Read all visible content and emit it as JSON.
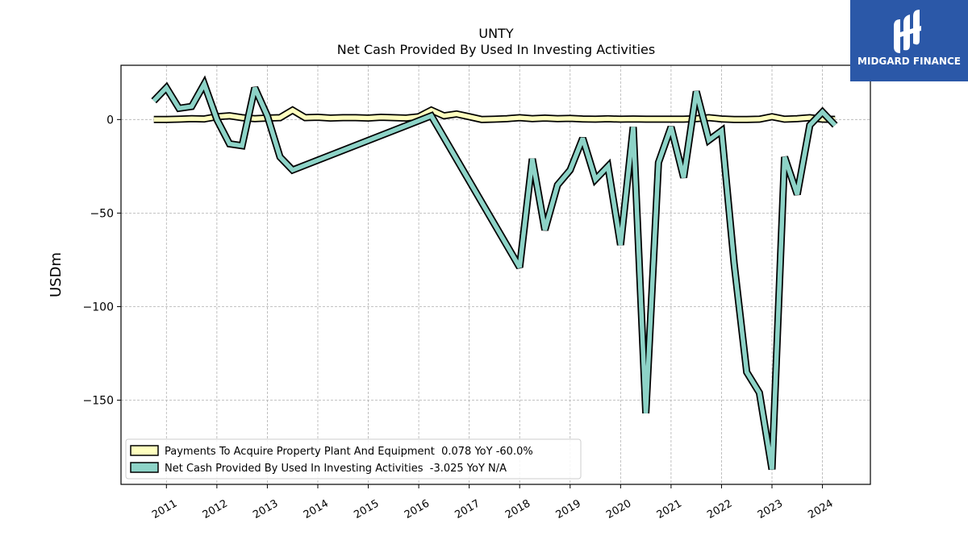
{
  "logo": {
    "text": "MIDGARD FINANCE"
  },
  "chart_data": {
    "type": "line",
    "title": "UNTY",
    "subtitle": "Net Cash Provided By Used In Investing Activities",
    "ylabel": "USDm",
    "xlabel": "",
    "xlim": [
      2010.1,
      2024.95
    ],
    "ylim": [
      -195,
      29
    ],
    "yticks": [
      0,
      -50,
      -100,
      -150
    ],
    "xticks": [
      2011,
      2012,
      2013,
      2014,
      2015,
      2016,
      2017,
      2018,
      2019,
      2020,
      2021,
      2022,
      2023,
      2024
    ],
    "grid": true,
    "legend_position": "lower-left",
    "series": [
      {
        "name": "Payments To Acquire Property Plant And Equipment  0.078 YoY -60.0%",
        "color": "#ffffbf",
        "x": [
          2010.75,
          2011.0,
          2011.25,
          2011.5,
          2011.75,
          2012.0,
          2012.25,
          2012.5,
          2012.75,
          2013.0,
          2013.25,
          2013.5,
          2013.75,
          2014.0,
          2014.25,
          2014.5,
          2014.75,
          2015.0,
          2015.25,
          2015.5,
          2015.75,
          2016.0,
          2016.25,
          2016.5,
          2016.75,
          2017.0,
          2017.25,
          2017.5,
          2017.75,
          2018.0,
          2018.25,
          2018.5,
          2018.75,
          2019.0,
          2019.25,
          2019.5,
          2019.75,
          2020.0,
          2020.25,
          2020.5,
          2020.75,
          2021.0,
          2021.25,
          2021.5,
          2021.75,
          2022.0,
          2022.25,
          2022.5,
          2022.75,
          2023.0,
          2023.25,
          2023.5,
          2023.75,
          2024.0,
          2024.25
        ],
        "values": [
          0.0,
          0.0,
          0.2,
          0.5,
          0.3,
          1.5,
          2.0,
          1.0,
          0.5,
          0.8,
          1.0,
          5.0,
          1.0,
          1.2,
          0.8,
          1.0,
          1.0,
          0.8,
          1.2,
          1.0,
          0.8,
          1.5,
          5.0,
          2.0,
          3.0,
          1.5,
          0.0,
          0.2,
          0.5,
          1.0,
          0.5,
          0.8,
          0.5,
          0.6,
          0.3,
          0.2,
          0.4,
          0.2,
          0.3,
          0.2,
          0.2,
          0.2,
          0.2,
          0.5,
          1.0,
          0.3,
          0.0,
          0.0,
          0.2,
          1.5,
          0.2,
          0.5,
          1.0,
          0.2,
          0.078
        ]
      },
      {
        "name": "Net Cash Provided By Used In Investing Activities  -3.025 YoY N/A",
        "color": "#8dd3c7",
        "x": [
          2010.75,
          2011.0,
          2011.25,
          2011.5,
          2011.75,
          2012.0,
          2012.25,
          2012.5,
          2012.75,
          2013.0,
          2013.25,
          2013.5,
          2016.25,
          2018.0,
          2018.25,
          2018.5,
          2018.75,
          2019.0,
          2019.25,
          2019.5,
          2019.75,
          2020.0,
          2020.25,
          2020.5,
          2020.75,
          2021.0,
          2021.25,
          2021.5,
          2021.75,
          2022.0,
          2022.25,
          2022.5,
          2022.75,
          2023.0,
          2023.25,
          2023.5,
          2023.75,
          2024.0,
          2024.25
        ],
        "values": [
          10.0,
          17.0,
          6.0,
          7.0,
          19.0,
          0.0,
          -13.0,
          -14.0,
          17.0,
          2.0,
          -20.0,
          -27.0,
          2.0,
          -79.0,
          -21.0,
          -59.0,
          -35.0,
          -27.0,
          -10.0,
          -32.0,
          -25.0,
          -67.0,
          -4.0,
          -157.0,
          -23.0,
          -4.0,
          -31.0,
          15.0,
          -11.0,
          -6.0,
          -77.0,
          -135.0,
          -146.0,
          -187.0,
          -20.0,
          -40.0,
          -3.0,
          4.0,
          -3.025
        ]
      }
    ]
  }
}
